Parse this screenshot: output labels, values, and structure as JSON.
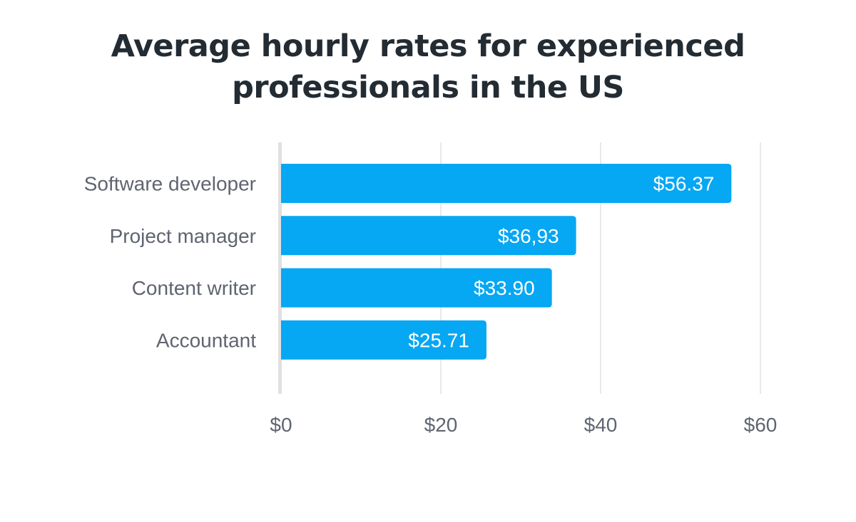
{
  "colors": {
    "bar": "#06a7f3",
    "grid": "#e2e2e2",
    "baseline": "#e0e0e0",
    "title": "#232b33",
    "label": "#5f6470",
    "value_text": "#ffffff"
  },
  "chart_data": {
    "type": "bar",
    "orientation": "horizontal",
    "title_lines": [
      "Average hourly rates for experienced",
      "professionals in the US"
    ],
    "categories": [
      "Software developer",
      "Project manager",
      "Content writer",
      "Accountant"
    ],
    "values": [
      56.37,
      36.93,
      33.9,
      25.71
    ],
    "value_labels": [
      "$56.37",
      "$36,93",
      "$33.90",
      "$25.71"
    ],
    "xlim": [
      0,
      60
    ],
    "xticks": [
      0,
      20,
      40,
      60
    ],
    "xtick_labels": [
      "$0",
      "$20",
      "$40",
      "$60"
    ],
    "xlabel": "",
    "ylabel": "",
    "grid": "vertical",
    "legend": "none"
  }
}
